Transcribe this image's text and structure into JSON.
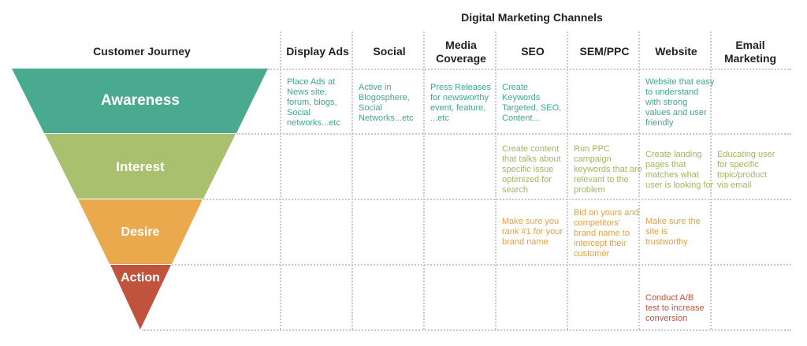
{
  "title": "Digital Marketing Channels",
  "journey_header": "Customer Journey",
  "channels": [
    "Display Ads",
    "Social",
    "Media\nCoverage",
    "SEO",
    "SEM/PPC",
    "Website",
    "Email\nMarketing"
  ],
  "stages": [
    {
      "label": "Awareness",
      "color": "#4aaa8f"
    },
    {
      "label": "Interest",
      "color": "#a9c16f"
    },
    {
      "label": "Desire",
      "color": "#eba94e"
    },
    {
      "label": "Action",
      "color": "#c0533e"
    }
  ],
  "cells": {
    "awareness": {
      "display_ads": "Place Ads at\nNews site,\nforum, blogs,\nSocial\nnetworks...etc",
      "social": "Active in\nBlogosphere,\nSocial\nNetworks...etc",
      "media": "Press Releases\nfor newsworthy\nevent, feature,\n...etc",
      "seo": "Create\nKeywords\nTargeted, SEO,\nContent...",
      "website": "Website that easy\nto understand\nwith strong\nvalues and user\nfriendly"
    },
    "interest": {
      "seo": "Create content\nthat talks about\nspecific issue\noptimized for\nsearch",
      "sem": "Run PPC\ncampaign\nkeywords that are\nrelevant to the\nproblem",
      "website": "Create landing\npages that\nmatches what\nuser is looking for",
      "email": "Educating user\nfor specific\ntopic/product\nvia email"
    },
    "desire": {
      "seo": "Make sure you\nrank #1 for your\nbrand name",
      "sem": "Bid on yours and\ncompetitors'\nbrand name to\nintercept their\ncustomer",
      "website": "Make sure the\nsite is\ntrustworthy"
    },
    "action": {
      "website": "Conduct A/B\ntest to increase\nconversion"
    }
  },
  "text_colors": {
    "awareness": "#3fa88e",
    "interest": "#9fb85f",
    "desire": "#e3a13f",
    "action": "#c0533e"
  }
}
